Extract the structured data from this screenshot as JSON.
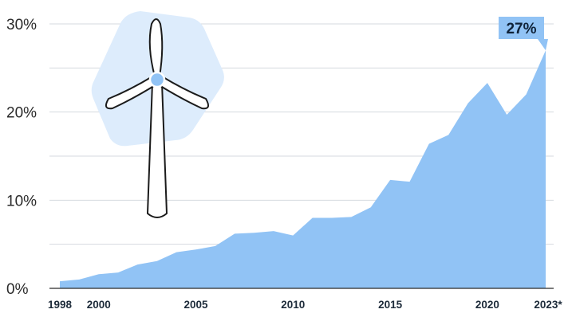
{
  "colors": {
    "area_fill": "#91c3f5",
    "callout_fill": "#91c3f5",
    "icon_background": "#ddecfc",
    "icon_hub": "#91c3f5",
    "icon_outline": "#1b1b1b"
  },
  "icons": {
    "illustration": "wind-turbine-icon"
  },
  "chart_data": {
    "type": "area",
    "title": "",
    "xlabel": "",
    "ylabel": "",
    "x": [
      1998,
      1999,
      2000,
      2001,
      2002,
      2003,
      2004,
      2005,
      2006,
      2007,
      2008,
      2009,
      2010,
      2011,
      2012,
      2013,
      2014,
      2015,
      2016,
      2017,
      2018,
      2019,
      2020,
      2021,
      2022,
      2023
    ],
    "series": [
      {
        "values": [
          0.8,
          1.0,
          1.6,
          1.8,
          2.7,
          3.1,
          4.1,
          4.4,
          4.8,
          6.2,
          6.3,
          6.5,
          6.0,
          8.0,
          8.0,
          8.1,
          9.2,
          12.3,
          12.1,
          16.4,
          17.4,
          21.0,
          23.3,
          19.7,
          22.0,
          27.0
        ]
      }
    ],
    "ylim": [
      0,
      30
    ],
    "y_ticks": [
      {
        "value": 0,
        "label": "0%"
      },
      {
        "value": 10,
        "label": "10%"
      },
      {
        "value": 20,
        "label": "20%"
      },
      {
        "value": 30,
        "label": "30%"
      }
    ],
    "y_gridlines": [
      5,
      10,
      15,
      20,
      25,
      30
    ],
    "x_ticks": [
      {
        "value": 1998,
        "label": "1998"
      },
      {
        "value": 2000,
        "label": "2000"
      },
      {
        "value": 2005,
        "label": "2005"
      },
      {
        "value": 2010,
        "label": "2010"
      },
      {
        "value": 2015,
        "label": "2015"
      },
      {
        "value": 2020,
        "label": "2020"
      },
      {
        "value": 2023,
        "label": "2023*"
      }
    ],
    "grid": true,
    "annotations": [
      {
        "x": 2023,
        "y": 27,
        "text": "27%"
      }
    ]
  }
}
